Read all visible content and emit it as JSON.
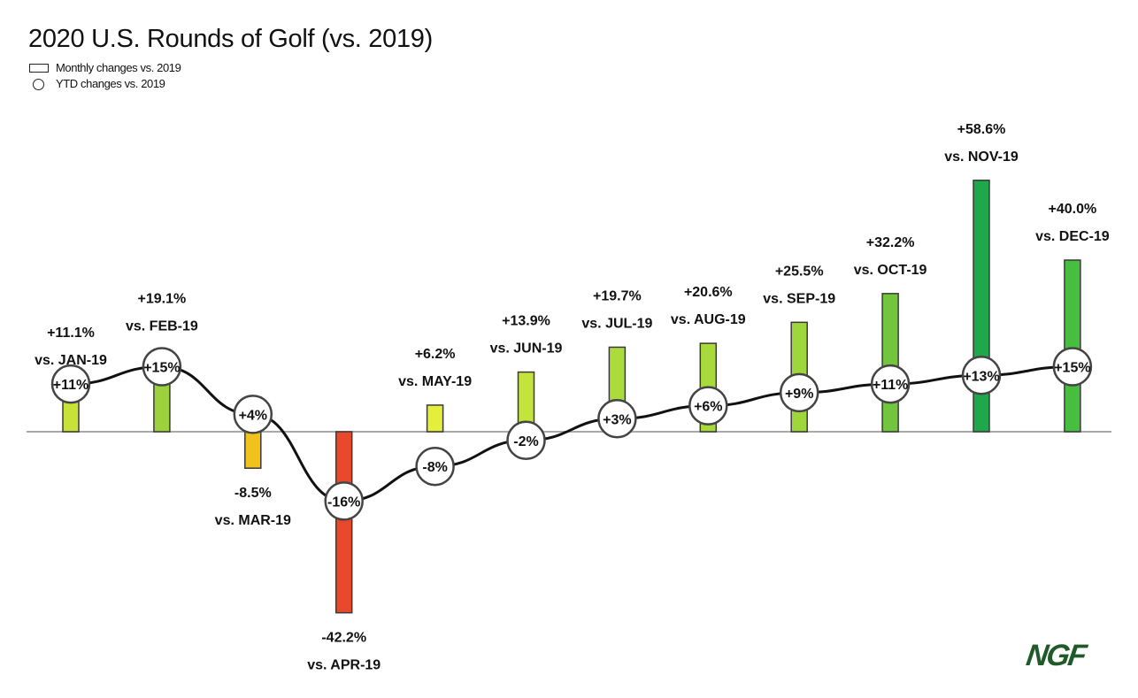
{
  "chart_data": {
    "type": "bar",
    "title": "2020 U.S. Rounds of Golf (vs. 2019)",
    "legend": [
      "Monthly changes vs. 2019",
      "YTD changes vs. 2019"
    ],
    "legend_placement": "top-left",
    "grid": false,
    "categories": [
      "JAN-19",
      "FEB-19",
      "MAR-19",
      "APR-19",
      "MAY-19",
      "JUN-19",
      "JUL-19",
      "AUG-19",
      "SEP-19",
      "OCT-19",
      "NOV-19",
      "DEC-19"
    ],
    "series": [
      {
        "name": "Monthly changes vs. 2019",
        "type": "bar",
        "values": [
          11.1,
          19.1,
          -8.5,
          -42.2,
          6.2,
          13.9,
          19.7,
          20.6,
          25.5,
          32.2,
          58.6,
          40.0
        ],
        "labels": [
          "+11.1%",
          "+19.1%",
          "-8.5%",
          "-42.2%",
          "+6.2%",
          "+13.9%",
          "+19.7%",
          "+20.6%",
          "+25.5%",
          "+32.2%",
          "+58.6%",
          "+40.0%"
        ],
        "sublabels": [
          "vs. JAN-19",
          "vs. FEB-19",
          "vs. MAR-19",
          "vs. APR-19",
          "vs. MAY-19",
          "vs. JUN-19",
          "vs. JUL-19",
          "vs. AUG-19",
          "vs. SEP-19",
          "vs. OCT-19",
          "vs. NOV-19",
          "vs. DEC-19"
        ],
        "colors": [
          "#c9e23a",
          "#9ed23c",
          "#f2c21c",
          "#e8482b",
          "#e4ee3c",
          "#c3e43c",
          "#acdc3c",
          "#a8da3c",
          "#9ed63c",
          "#72c63e",
          "#1ea84b",
          "#46bf40"
        ]
      },
      {
        "name": "YTD changes vs. 2019",
        "type": "line",
        "values": [
          11,
          15,
          4,
          -16,
          -8,
          -2,
          3,
          6,
          9,
          11,
          13,
          15
        ],
        "labels": [
          "+11%",
          "+15%",
          "+4%",
          "-16%",
          "-8%",
          "-2%",
          "+3%",
          "+6%",
          "+9%",
          "+11%",
          "+13%",
          "+15%"
        ]
      }
    ]
  },
  "logo": "NGF"
}
